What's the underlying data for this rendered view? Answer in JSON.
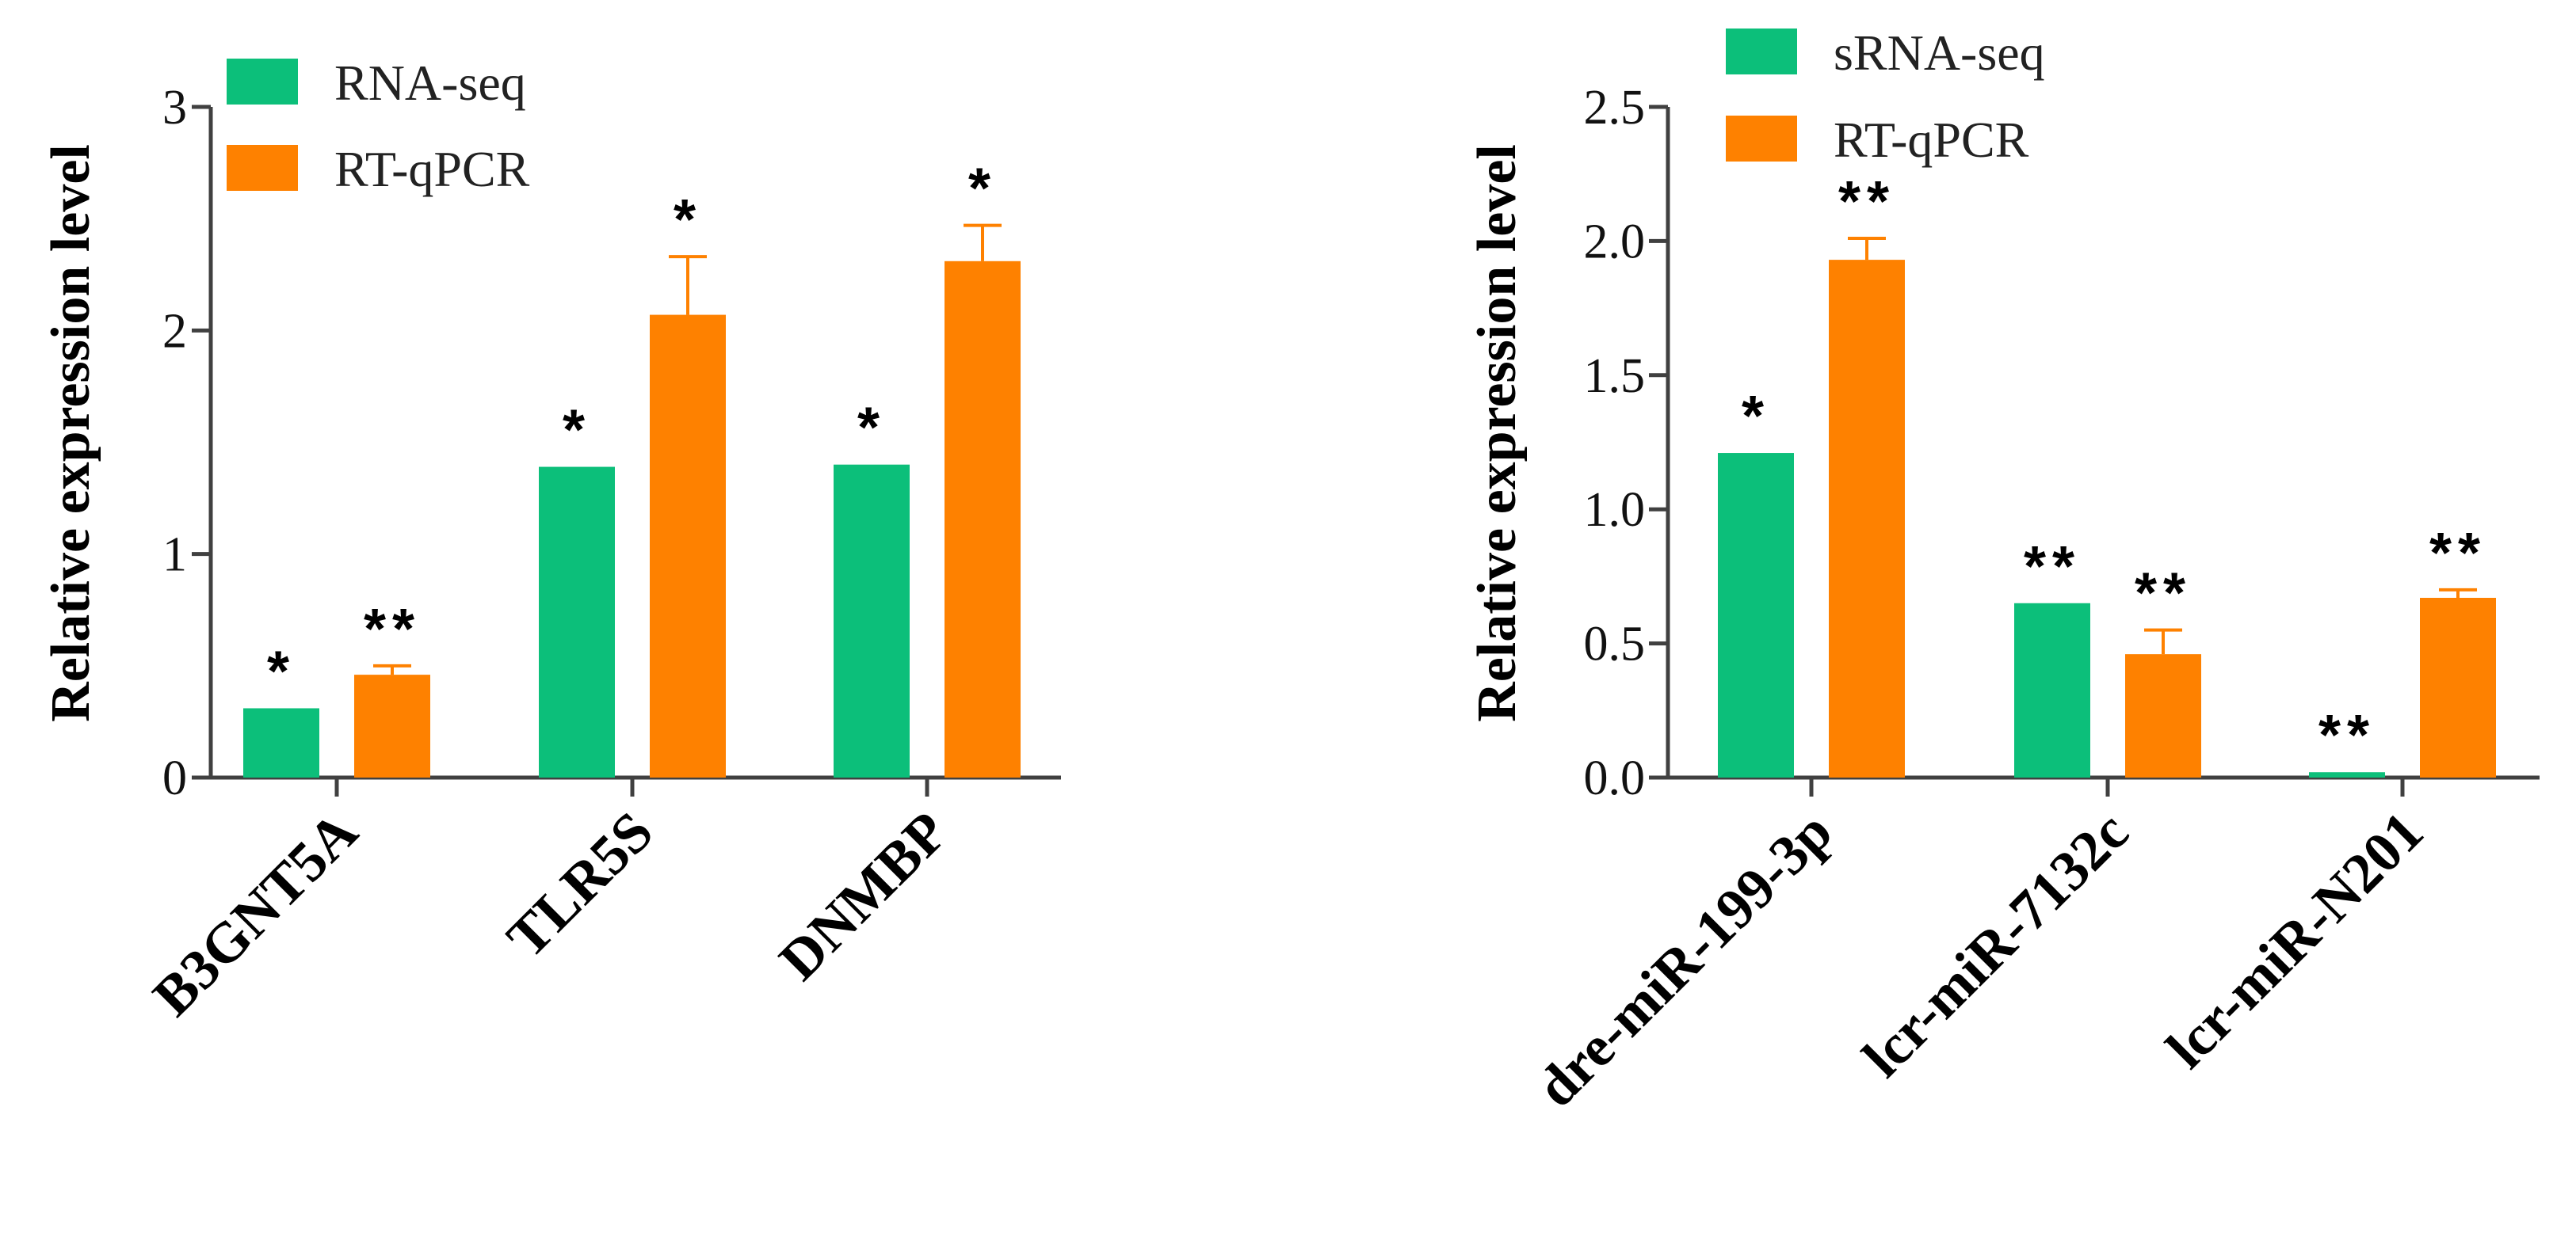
{
  "chart_data": [
    {
      "type": "bar",
      "title": "",
      "xlabel": "",
      "ylabel": "Relative expression level",
      "ylim": [
        0,
        3
      ],
      "yticks": [
        "0",
        "1",
        "2",
        "3"
      ],
      "categories": [
        "B3GNT5A",
        "TLR5S",
        "DNMBP"
      ],
      "legend_position": "top-left",
      "series": [
        {
          "name": "RNA-seq",
          "color": "#0cbf7a",
          "values": [
            0.31,
            1.39,
            1.4
          ],
          "errors": [
            0,
            0,
            0
          ],
          "significance": [
            "*",
            "*",
            "*"
          ]
        },
        {
          "name": "RT-qPCR",
          "color": "#fe8100",
          "values": [
            0.46,
            2.07,
            2.31
          ],
          "errors": [
            0.04,
            0.26,
            0.16
          ],
          "significance": [
            "**",
            "*",
            "*"
          ]
        }
      ]
    },
    {
      "type": "bar",
      "title": "",
      "xlabel": "",
      "ylabel": "Relative expression level",
      "ylim": [
        0,
        2.5
      ],
      "yticks": [
        "0.0",
        "0.5",
        "1.0",
        "1.5",
        "2.0",
        "2.5"
      ],
      "categories": [
        "dre-miR-199-3p",
        "lcr-miR-7132c",
        "lcr-miR-N201"
      ],
      "legend_position": "top-left",
      "series": [
        {
          "name": "sRNA-seq",
          "color": "#0cbf7a",
          "values": [
            1.21,
            0.65,
            0.02
          ],
          "errors": [
            0,
            0,
            0
          ],
          "significance": [
            "*",
            "**",
            "**"
          ]
        },
        {
          "name": "RT-qPCR",
          "color": "#fe8100",
          "values": [
            1.93,
            0.46,
            0.67
          ],
          "errors": [
            0.08,
            0.09,
            0.03
          ],
          "significance": [
            "**",
            "**",
            "**"
          ]
        }
      ]
    }
  ]
}
